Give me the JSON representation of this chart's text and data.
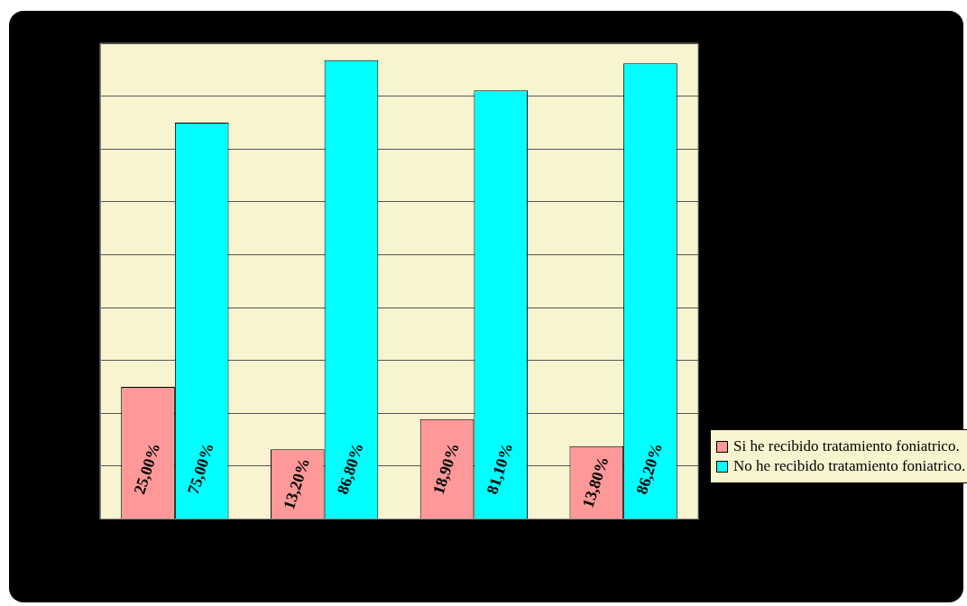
{
  "chart_data": {
    "type": "bar",
    "categories": [
      null,
      null,
      null,
      null
    ],
    "series": [
      {
        "name": "Si he recibido tratamiento foniatrico.",
        "color": "#ff9999",
        "values": [
          25.0,
          13.2,
          18.9,
          13.8
        ],
        "value_labels": [
          "25,00%",
          "13,20%",
          "18,90%",
          "13,80%"
        ]
      },
      {
        "name": "No he recibido tratamiento foniatrico.",
        "color": "#00ffff",
        "values": [
          75.0,
          86.8,
          81.1,
          86.2
        ],
        "value_labels": [
          "75,00%",
          "86,80%",
          "81,10%",
          "86,20%"
        ]
      }
    ],
    "ylim": [
      0,
      90
    ],
    "yticks": [
      {
        "value": 0,
        "label": null
      },
      {
        "value": 10,
        "label": null
      },
      {
        "value": 20,
        "label": null
      },
      {
        "value": 30,
        "label": null
      },
      {
        "value": 40,
        "label": null
      },
      {
        "value": 50,
        "label": null
      },
      {
        "value": 60,
        "label": null
      },
      {
        "value": 70,
        "label": null
      },
      {
        "value": 80,
        "label": null
      },
      {
        "value": 90,
        "label": null
      }
    ],
    "grid": "y",
    "legend": "right"
  }
}
